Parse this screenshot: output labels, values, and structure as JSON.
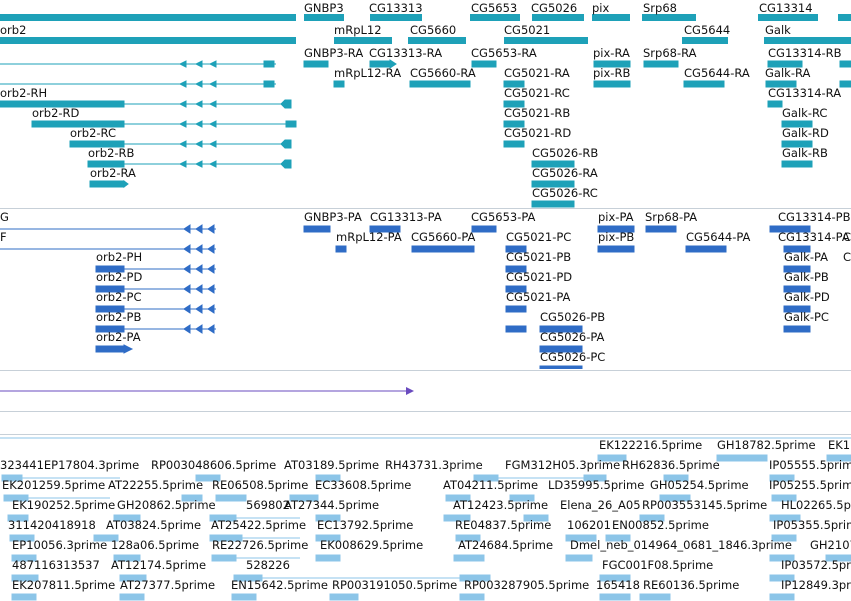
{
  "colors": {
    "gene": "#1ea1b8",
    "transcript": "#1ea1b8",
    "protein": "#2f6cc6",
    "feature": "#6a4bbf",
    "est": "#8cc5e8",
    "divider": "#c7d0d8"
  },
  "gene_track": {
    "labels": [
      "orb2",
      "GNBP3",
      "mRpL12",
      "CG13313",
      "CG5660",
      "CG5653",
      "CG5021",
      "CG5026",
      "pix",
      "Srp68",
      "CG5644",
      "CG13314",
      "Galk"
    ]
  },
  "transcript_track": {
    "labels": [
      "orb2-RH",
      "orb2-RD",
      "orb2-RC",
      "orb2-RB",
      "orb2-RA",
      "GNBP3-RA",
      "mRpL12-RA",
      "CG13313-RA",
      "CG5660-RA",
      "CG5653-RA",
      "CG5021-RA",
      "CG5021-RC",
      "CG5021-RB",
      "CG5021-RD",
      "CG5026-RB",
      "CG5026-RA",
      "CG5026-RC",
      "pix-RA",
      "pix-RB",
      "Srp68-RA",
      "CG5644-RA",
      "CG13314-RB",
      "Galk-RA",
      "CG13314-RA",
      "Galk-RC",
      "Galk-RD",
      "Galk-RB"
    ]
  },
  "protein_track": {
    "labels": [
      "G",
      "F",
      "orb2-PH",
      "orb2-PD",
      "orb2-PC",
      "orb2-PB",
      "orb2-PA",
      "GNBP3-PA",
      "mRpL12-PA",
      "CG13313-PA",
      "CG5660-PA",
      "CG5653-PA",
      "CG5021-PC",
      "CG5021-PB",
      "CG5021-PD",
      "CG5021-PA",
      "CG5026-PB",
      "CG5026-PA",
      "CG5026-PC",
      "pix-PA",
      "pix-PB",
      "Srp68-PA",
      "CG5644-PA",
      "CG13314-PB",
      "CG13314-PA",
      "Galk-PA",
      "Galk-PB",
      "Galk-PD",
      "Galk-PC",
      "C",
      "C"
    ]
  },
  "est_track": {
    "rows": [
      [
        "EK122216.5prime",
        "GH18782.5prime",
        "EK1"
      ],
      [
        "323441EP17804.3prime",
        "RP003048606.5prime",
        "AT03189.5prime",
        "RH43731.3prime",
        "FGM312H05.3prime",
        "RH62836.5prime",
        "IP05555.5prime"
      ],
      [
        "EK201259.5prime",
        "AT22255.5prime",
        "RE06508.5prime",
        "EC33608.5prime",
        "AT04211.5prime",
        "LD35995.5prime",
        "GH05254.5prime",
        "IP05255.5prime"
      ],
      [
        "EK190252.5prime",
        "GH20862.5prime",
        "569802",
        "AT27344.5prime",
        "AT12423.5prime",
        "Elena_26_A05",
        "RP003553145.5prime",
        "HL02265.5prime"
      ],
      [
        "311420418918",
        "AT03824.5prime",
        "AT25422.5prime",
        "EC13792.5prime",
        "RE04837.5prime",
        "106201",
        "EN00852.5prime",
        "IP05355.5prime"
      ],
      [
        "EP10056.3prime",
        "128a06.5prime",
        "RE22726.5prime",
        "EK008629.5prime",
        "AT24684.5prime",
        "Dmel_neb_014964_0681_1846.3prime",
        "GH2107"
      ],
      [
        "487116313537",
        "AT12174.5prime",
        "528226",
        "FGC001F08.5prime",
        "IP03572.5prime"
      ],
      [
        "EK207811.5prime",
        "AT27377.5prime",
        "EN15642.5prime",
        "RP003191050.5prime",
        "RP003287905.5prime",
        "165418",
        "RE60136.5prime",
        "IP12849.3prime"
      ]
    ]
  }
}
